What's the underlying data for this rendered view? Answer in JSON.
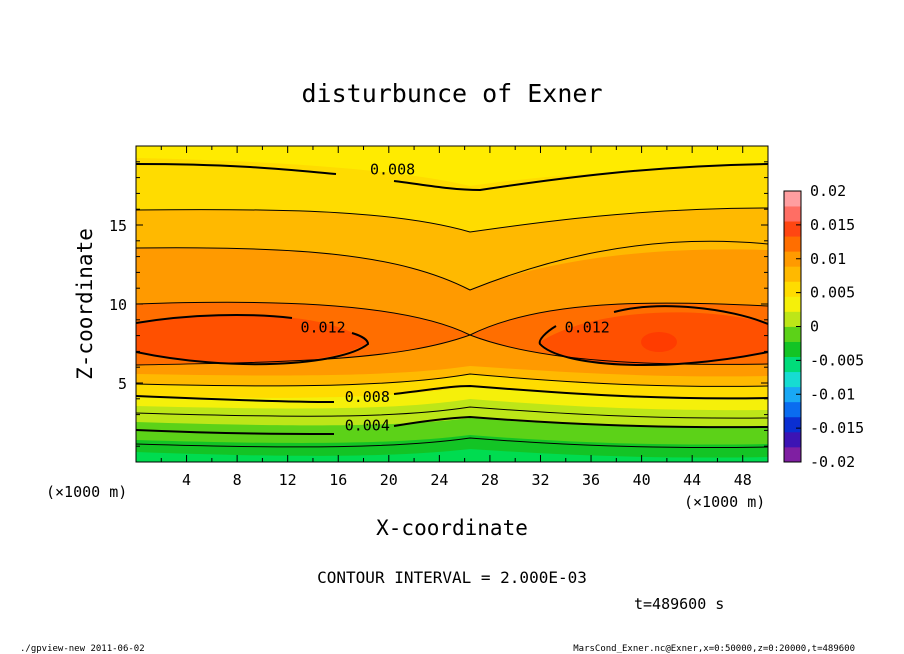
{
  "chart_data": {
    "type": "heatmap",
    "title": "disturbunce of Exner",
    "xlabel": "X-coordinate",
    "ylabel": "Z-coordinate",
    "x_unit_left": "(×1000 m)",
    "x_unit_right": "(×1000 m)",
    "xlim": [
      0,
      50
    ],
    "ylim": [
      0,
      20
    ],
    "x_ticks": [
      4,
      8,
      12,
      16,
      20,
      24,
      28,
      32,
      36,
      40,
      44,
      48
    ],
    "y_ticks": [
      5,
      10,
      15
    ],
    "contour_interval_text": "CONTOUR INTERVAL = 2.000E-03",
    "time_text": "t=489600 s",
    "footer_left": "./gpview-new   2011-06-02",
    "footer_right": "MarsCond_Exner.nc@Exner,x=0:50000,z=0:20000,t=489600",
    "colorbar": {
      "labels": [
        "0.02",
        "0.015",
        "0.01",
        "0.005",
        "0",
        "-0.005",
        "-0.01",
        "-0.015",
        "-0.02"
      ],
      "range": [
        -0.02,
        0.02
      ],
      "colors": [
        "#7f1fa2",
        "#3c14b4",
        "#0a2fd2",
        "#0a6cf0",
        "#19a8f5",
        "#16dcd2",
        "#00dc7a",
        "#13c425",
        "#5cd218",
        "#bde618",
        "#f5f00a",
        "#ffdc00",
        "#ffb900",
        "#ff9a00",
        "#ff6e00",
        "#ff4612",
        "#ff6e64",
        "#ff9ea0"
      ]
    },
    "contour_labels": [
      {
        "text": "0.008",
        "x": 20.3,
        "z": 18.5
      },
      {
        "text": "0.012",
        "x": 14.8,
        "z": 8.5
      },
      {
        "text": "0.012",
        "x": 35.7,
        "z": 8.5
      },
      {
        "text": "0.008",
        "x": 18.3,
        "z": 4.1
      },
      {
        "text": "0.004",
        "x": 18.3,
        "z": 2.3
      }
    ]
  }
}
